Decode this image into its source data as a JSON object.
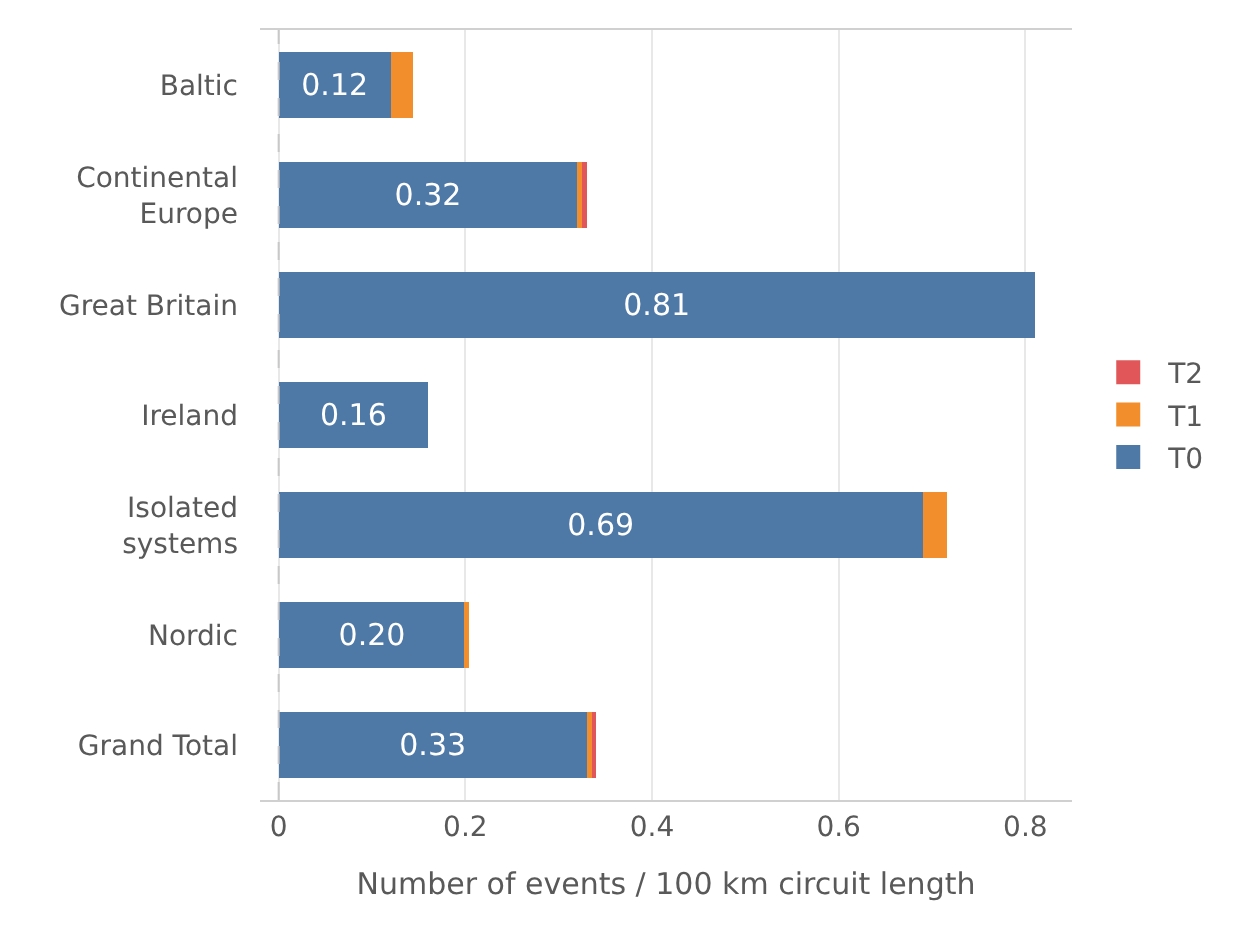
{
  "chart_data": {
    "type": "bar",
    "orientation": "horizontal",
    "stacked": true,
    "xlabel": "Number of events / 100 km circuit length",
    "categories": [
      "Baltic",
      "Continental Europe",
      "Great Britain",
      "Ireland",
      "Isolated systems",
      "Nordic",
      "Grand Total"
    ],
    "series": [
      {
        "name": "T0",
        "color": "#4e79a7",
        "values": [
          0.12,
          0.32,
          0.81,
          0.16,
          0.69,
          0.2,
          0.33
        ],
        "value_labels": [
          "0.12",
          "0.32",
          "0.81",
          "0.16",
          "0.69",
          "0.20",
          "0.33"
        ]
      },
      {
        "name": "T1",
        "color": "#f28e2b",
        "values": [
          0.024,
          0.006,
          0,
          0,
          0.026,
          0.004,
          0.006
        ]
      },
      {
        "name": "T2",
        "color": "#e15759",
        "values": [
          0,
          0.004,
          0,
          0,
          0,
          0,
          0.004
        ]
      }
    ],
    "ref_lines": [
      {
        "axis": "x",
        "value": 0,
        "color": "#c8c8c8",
        "line_style": "dashed"
      }
    ],
    "xlim": [
      -0.02,
      0.85
    ],
    "xticks": [
      0,
      0.2,
      0.4,
      0.6,
      0.8
    ],
    "grid": "x",
    "legend": "right"
  }
}
